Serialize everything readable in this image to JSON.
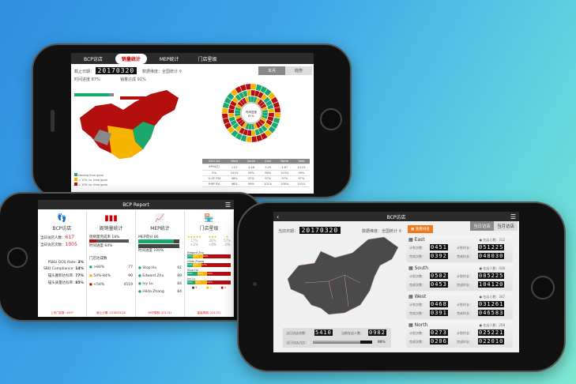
{
  "top_phone": {
    "tabs": [
      "BCP访店",
      "销量统计",
      "MEP统计",
      "门店星级"
    ],
    "active_tab": 1,
    "date_label": "截止日期：",
    "date": "20170320",
    "dimension_label": "数据维度：全国统计",
    "time_progress_label": "时间进度 87%",
    "time_progress": 87,
    "sales_label": "销量达成 91%",
    "sales_progress": 91,
    "toggle": [
      "本月",
      "趋势"
    ],
    "radial_center": "时间进度 87%",
    "legend": [
      "leading time gone",
      "< 10% vs. time gone",
      "> 10% vs. time gone"
    ],
    "colors": {
      "green": "#1aa86e",
      "yellow": "#f5b400",
      "red": "#b30f0f"
    },
    "table": {
      "headers": [
        "2017.03",
        "West",
        "South",
        "East",
        "North",
        "Total"
      ],
      "rows": [
        [
          "BPM(亿)",
          "1.07",
          "4.48",
          "3.29",
          "4.67",
          "13.25"
        ],
        [
          "P/A",
          "101%",
          "99%",
          "96%",
          "103%",
          "99%"
        ],
        [
          "% OF P.M",
          "98%",
          "97%",
          "97%",
          "97%",
          "97%"
        ],
        [
          "P.MP P/A",
          "98%",
          "99%",
          "101%",
          "100%",
          "101%"
        ]
      ]
    }
  },
  "left_phone": {
    "title": "BCP Report",
    "cols": [
      {
        "title": "BCP访店",
        "icon": "footprint-icon",
        "lines": [
          {
            "k": "当日访店人数：",
            "v": "617"
          },
          {
            "k": "当日访店次数：",
            "v": "1005"
          }
        ],
        "kpis": [
          {
            "k": "PSKU OOS Rate:",
            "v": "3%"
          },
          {
            "k": "SBD Compliance:",
            "v": "14%"
          },
          {
            "k": "锚头圈积达标率:",
            "v": "77%"
          },
          {
            "k": "锚头质量达标率:",
            "v": "85%"
          }
        ],
        "footer": "上传门店数: 4497"
      },
      {
        "title": "周销量统计",
        "icon": "bottles-icon",
        "rate_label": "周销量完成率 18%",
        "rate": 18,
        "time_label": "时间进度 64%",
        "time": 64,
        "sub": "门店达成数",
        "rows": [
          {
            "k": ">84%",
            "v": "77",
            "c": "#1aa86e"
          },
          {
            "k": "54%-84%",
            "v": "90",
            "c": "#f5b400"
          },
          {
            "k": "<54%",
            "v": "4519",
            "c": "#b30f0f"
          }
        ],
        "footer": "截止日期: 2016/03/18"
      },
      {
        "title": "MEP统计",
        "icon": "chart-icon",
        "score_label": "MEP得分 86",
        "score": 86,
        "time_label": "时间进度 100%",
        "time": 100,
        "people": [
          {
            "n": "Stop Hu",
            "v": "91"
          },
          {
            "n": "Edward Zhu",
            "v": "89"
          },
          {
            "n": "Ivy Lu",
            "v": "84"
          },
          {
            "n": "Hilda Zhang",
            "v": "84"
          }
        ],
        "footer": "MEP周期: 201702"
      },
      {
        "title": "门店星级",
        "icon": "store-icon",
        "stars": [
          {
            "s": "★★★★★",
            "p": "17%",
            "d": "+2%"
          },
          {
            "s": "★★★",
            "p": "26%",
            "d": "+0%"
          },
          {
            "s": "★",
            "p": "57%",
            "d": "-2%"
          }
        ],
        "people": [
          {
            "n": "Edward Zhu",
            "g": "13%",
            "y": "23%",
            "r": "64%"
          },
          {
            "n": "Hilda Zhang",
            "g": "13%",
            "y": "20%",
            "r": "67%"
          },
          {
            "n": "Stop Hu",
            "g": "24%",
            "y": "22%",
            "r": "54%"
          },
          {
            "n": "Ivy Lu",
            "g": "19%",
            "y": "27%",
            "r": "54%"
          }
        ],
        "legend": [
          "5",
          "3",
          "1"
        ],
        "footer": "星级周期: 201703"
      }
    ]
  },
  "right_phone": {
    "title": "BCP访店",
    "date_label": "当前日期：",
    "date": "20170320",
    "dimension_label": "数据维度：全国统计",
    "rank_button": "查看排名",
    "toggle": [
      "当日访店",
      "当月访店"
    ],
    "bottom": {
      "visits_label": "当日访店次数：",
      "visits": "5410",
      "people_label": "当前在店人数：",
      "people": "0982",
      "rate_label": "当日访店占比：",
      "rate_text": "80%",
      "rate": 80
    },
    "regions": [
      {
        "name": "East",
        "count_label": "在店人数：312",
        "plan_n": "0451",
        "done_n": "0392",
        "plan_t": "051225",
        "done_t": "048030"
      },
      {
        "name": "South",
        "count_label": "在店人数：438",
        "plan_n": "0502",
        "done_n": "0453",
        "plan_t": "085225",
        "done_t": "104120"
      },
      {
        "name": "West",
        "count_label": "在店人数：347",
        "plan_n": "0468",
        "done_n": "0391",
        "plan_t": "031261",
        "done_t": "046583"
      },
      {
        "name": "North",
        "count_label": "在店人数：258",
        "plan_n": "0273",
        "done_n": "0206",
        "plan_t": "025221",
        "done_t": "022010"
      }
    ],
    "labels": {
      "plan_n": "计划次数：",
      "done_n": "完成次数：",
      "plan_t": "计划时长：",
      "done_t": "完成时长："
    }
  }
}
